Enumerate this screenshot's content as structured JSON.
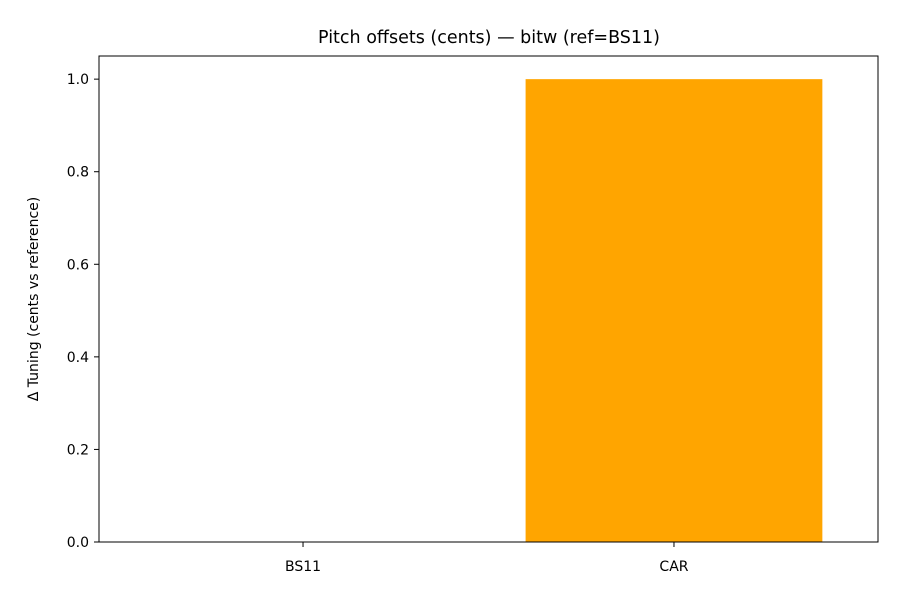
{
  "chart_data": {
    "type": "bar",
    "title": "Pitch offsets (cents) — bitw (ref=BS11)",
    "xlabel": "",
    "ylabel": "Δ Tuning (cents vs reference)",
    "categories": [
      "BS11",
      "CAR"
    ],
    "values": [
      0.0,
      1.0
    ],
    "ylim": [
      0,
      1.05
    ],
    "yticks": [
      0.0,
      0.2,
      0.4,
      0.6,
      0.8,
      1.0
    ],
    "ytick_labels": [
      "0.0",
      "0.2",
      "0.4",
      "0.6",
      "0.8",
      "1.0"
    ],
    "grid": false,
    "bar_color": "#ffa500"
  }
}
